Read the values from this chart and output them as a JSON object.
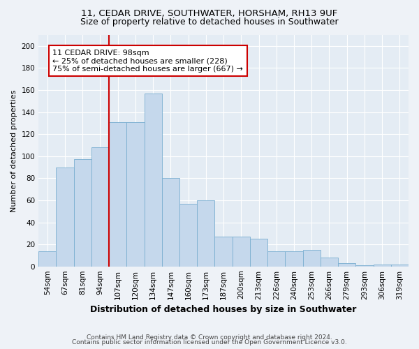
{
  "title1": "11, CEDAR DRIVE, SOUTHWATER, HORSHAM, RH13 9UF",
  "title2": "Size of property relative to detached houses in Southwater",
  "xlabel": "Distribution of detached houses by size in Southwater",
  "ylabel": "Number of detached properties",
  "categories": [
    "54sqm",
    "67sqm",
    "81sqm",
    "94sqm",
    "107sqm",
    "120sqm",
    "134sqm",
    "147sqm",
    "160sqm",
    "173sqm",
    "187sqm",
    "200sqm",
    "213sqm",
    "226sqm",
    "240sqm",
    "253sqm",
    "266sqm",
    "279sqm",
    "293sqm",
    "306sqm",
    "319sqm"
  ],
  "values": [
    14,
    90,
    97,
    108,
    131,
    131,
    157,
    80,
    57,
    60,
    27,
    27,
    25,
    14,
    14,
    15,
    8,
    3,
    1,
    2,
    2
  ],
  "bar_color": "#c5d8ec",
  "bar_edge_color": "#7aaed0",
  "vline_x_idx": 3.5,
  "vline_color": "#cc0000",
  "annotation_line1": "11 CEDAR DRIVE: 98sqm",
  "annotation_line2": "← 25% of detached houses are smaller (228)",
  "annotation_line3": "75% of semi-detached houses are larger (667) →",
  "annotation_box_color": "#ffffff",
  "annotation_box_edge": "#cc0000",
  "ylim": [
    0,
    210
  ],
  "yticks": [
    0,
    20,
    40,
    60,
    80,
    100,
    120,
    140,
    160,
    180,
    200
  ],
  "footer1": "Contains HM Land Registry data © Crown copyright and database right 2024.",
  "footer2": "Contains public sector information licensed under the Open Government Licence v3.0.",
  "bg_color": "#eef2f7",
  "plot_bg_color": "#e4ecf4",
  "grid_color": "#ffffff",
  "title1_fontsize": 9.5,
  "title2_fontsize": 9.0,
  "xlabel_fontsize": 9.0,
  "ylabel_fontsize": 8.0,
  "tick_fontsize": 7.5,
  "annotation_fontsize": 8.0,
  "footer_fontsize": 6.5
}
